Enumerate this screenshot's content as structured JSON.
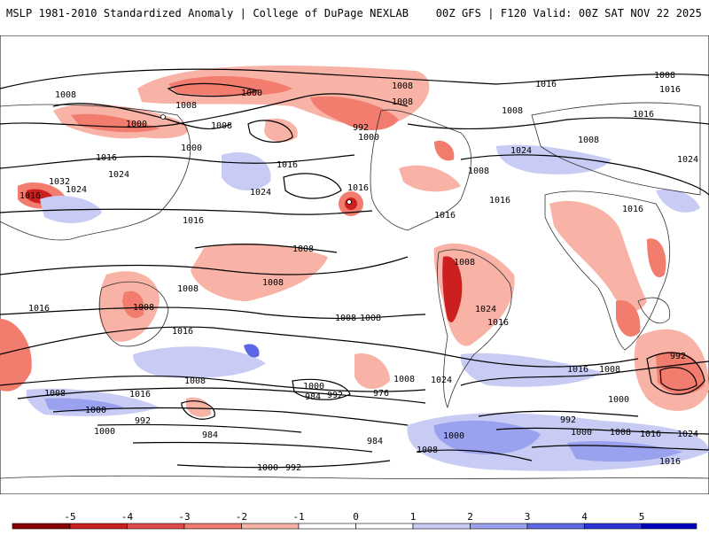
{
  "header": {
    "title": "MSLP 1981-2010 Standardized Anomaly | College of DuPage NEXLAB",
    "run": "00Z GFS | F120 Valid: 00Z SAT NOV 22 2025"
  },
  "colorbar": {
    "ticks": [
      "-5",
      "-4",
      "-3",
      "-2",
      "-1",
      "0",
      "1",
      "2",
      "3",
      "4",
      "5"
    ],
    "colors": [
      "#8b0000",
      "#cc2020",
      "#e04a4a",
      "#f27c6e",
      "#f8b3a6",
      "#ffffff",
      "#ffffff",
      "#c8ccf5",
      "#9aa2ef",
      "#5f68e4",
      "#2c34d8",
      "#0000c0"
    ]
  },
  "isobar_labels": [
    "1008",
    "1000",
    "1008",
    "1000",
    "1008",
    "1008",
    "1000",
    "992",
    "1000",
    "1008",
    "1016",
    "1016",
    "1008",
    "1024",
    "1008",
    "1016",
    "1024",
    "1032",
    "1024",
    "1016",
    "1016",
    "1024",
    "1024",
    "1016",
    "1016",
    "1008",
    "1016",
    "1016",
    "1008",
    "1008",
    "1016",
    "1008",
    "1008",
    "1016",
    "1016",
    "1008",
    "1016",
    "1008",
    "1024",
    "1016",
    "1008",
    "1008",
    "1016",
    "992",
    "1008",
    "1000",
    "1008",
    "1000",
    "984",
    "992",
    "976",
    "992",
    "1000",
    "1000",
    "1000",
    "1008",
    "1016",
    "1024",
    "1008",
    "1016",
    "1024",
    "984",
    "984",
    "1000",
    "992",
    "1000",
    "1008",
    "1016",
    "992",
    "1008"
  ],
  "colors": {
    "land_outline": "#333333",
    "contour": "#000000",
    "neg_light": "#f8b3a6",
    "neg_mid": "#f27c6e",
    "neg_dark": "#cc2020",
    "pos_light": "#c8ccf5",
    "pos_mid": "#9aa2ef",
    "pos_dark": "#5f68e4"
  }
}
